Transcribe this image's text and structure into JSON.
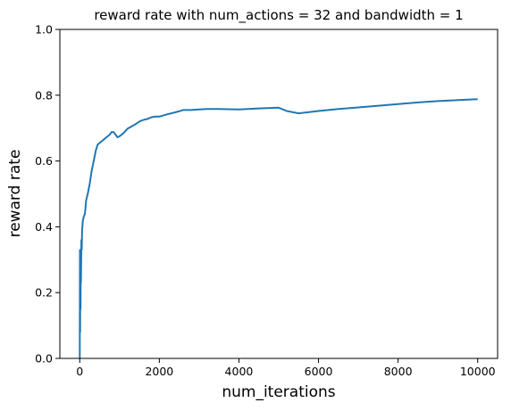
{
  "chart_data": {
    "type": "line",
    "title": "reward rate with num_actions = 32 and bandwidth = 1",
    "xlabel": "num_iterations",
    "ylabel": "reward rate",
    "xlim": [
      -500,
      10500
    ],
    "ylim": [
      0,
      1
    ],
    "grid": false,
    "x_ticks": [
      0,
      2000,
      4000,
      6000,
      8000,
      10000
    ],
    "x_tick_labels": [
      "0",
      "2000",
      "4000",
      "6000",
      "8000",
      "10000"
    ],
    "y_ticks": [
      0,
      0.2,
      0.4,
      0.6,
      0.8,
      1.0
    ],
    "y_tick_labels": [
      "0.0",
      "0.2",
      "0.4",
      "0.6",
      "0.8",
      "1.0"
    ],
    "series": [
      {
        "color": "#1f77b4",
        "x": [
          0,
          5,
          10,
          15,
          20,
          25,
          30,
          40,
          50,
          60,
          80,
          100,
          130,
          160,
          200,
          250,
          300,
          350,
          400,
          450,
          500,
          550,
          600,
          650,
          700,
          750,
          800,
          850,
          900,
          950,
          1000,
          1100,
          1200,
          1300,
          1400,
          1500,
          1600,
          1700,
          1800,
          1900,
          2000,
          2200,
          2400,
          2600,
          2800,
          3000,
          3200,
          3500,
          4000,
          4500,
          5000,
          5200,
          5500,
          6000,
          6500,
          7000,
          7500,
          8000,
          8500,
          9000,
          9500,
          10000
        ],
        "y": [
          0.0,
          0.33,
          0.08,
          0.3,
          0.15,
          0.32,
          0.23,
          0.36,
          0.33,
          0.39,
          0.42,
          0.43,
          0.44,
          0.48,
          0.5,
          0.53,
          0.57,
          0.6,
          0.63,
          0.65,
          0.655,
          0.66,
          0.665,
          0.67,
          0.675,
          0.68,
          0.688,
          0.688,
          0.68,
          0.672,
          0.675,
          0.685,
          0.698,
          0.705,
          0.712,
          0.72,
          0.725,
          0.728,
          0.733,
          0.735,
          0.735,
          0.742,
          0.748,
          0.755,
          0.755,
          0.757,
          0.758,
          0.758,
          0.757,
          0.76,
          0.762,
          0.752,
          0.745,
          0.752,
          0.758,
          0.763,
          0.768,
          0.773,
          0.778,
          0.782,
          0.785,
          0.788
        ]
      }
    ]
  }
}
